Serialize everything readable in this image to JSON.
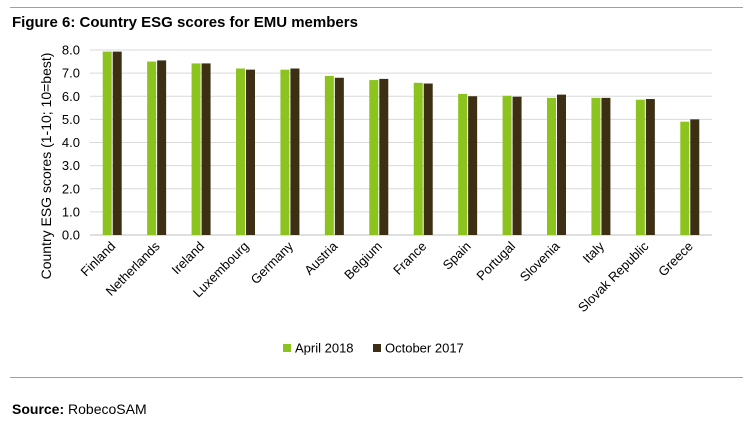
{
  "figure_title": "Figure 6: Country ESG scores for EMU members",
  "source": {
    "label": "Source:",
    "value": "RobecoSAM"
  },
  "colors": {
    "april": "#8dc31e",
    "october": "#3d2f14",
    "rule": "#8dc31e",
    "grid": "#d9d9d9"
  },
  "chart_data": {
    "type": "bar",
    "title": "",
    "xlabel": "",
    "ylabel": "Country ESG scores (1-10; 10=best)",
    "ylim": [
      0,
      8
    ],
    "yticks": [
      "0.0",
      "1.0",
      "2.0",
      "3.0",
      "4.0",
      "5.0",
      "6.0",
      "7.0",
      "8.0"
    ],
    "categories": [
      "Finland",
      "Netherlands",
      "Ireland",
      "Luxembourg",
      "Germany",
      "Austria",
      "Belgium",
      "France",
      "Spain",
      "Portugal",
      "Slovenia",
      "Italy",
      "Slovak Republic",
      "Greece"
    ],
    "series": [
      {
        "name": "April 2018",
        "values": [
          7.93,
          7.5,
          7.42,
          7.2,
          7.15,
          6.88,
          6.7,
          6.58,
          6.1,
          6.02,
          5.93,
          5.93,
          5.85,
          4.9
        ]
      },
      {
        "name": "October 2017",
        "values": [
          7.93,
          7.55,
          7.42,
          7.15,
          7.2,
          6.8,
          6.75,
          6.55,
          6.0,
          5.98,
          6.07,
          5.93,
          5.88,
          5.0
        ]
      }
    ],
    "grid": true,
    "legend": "bottom-center"
  }
}
